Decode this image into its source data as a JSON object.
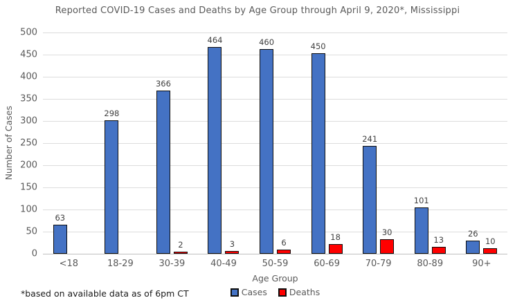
{
  "chart_data": {
    "type": "bar",
    "title": "Reported COVID-19 Cases and Deaths by Age Group through April 9, 2020*, Mississippi",
    "categories": [
      "<18",
      "18-29",
      "30-39",
      "40-49",
      "50-59",
      "60-69",
      "70-79",
      "80-89",
      "90+"
    ],
    "series": [
      {
        "name": "Cases",
        "color": "#4472c4",
        "values": [
          63,
          298,
          366,
          464,
          460,
          450,
          241,
          101,
          26
        ]
      },
      {
        "name": "Deaths",
        "color": "#ff0000",
        "values": [
          0,
          0,
          2,
          3,
          6,
          18,
          30,
          13,
          10
        ]
      }
    ],
    "xlabel": "Age Group",
    "ylabel": "Number of Cases",
    "ylim": [
      0,
      500
    ],
    "ytick_step": 50,
    "grid": true,
    "legend_position": "bottom",
    "data_labels": true,
    "hide_zero_bars": true
  },
  "footnote": "*based on available data as of 6pm CT",
  "colors": {
    "bar_outline": "#0d0d0d",
    "gridline": "#dcdcdc",
    "axis_line": "#bfbfbf",
    "text_muted": "#595959",
    "data_label": "#404040"
  }
}
